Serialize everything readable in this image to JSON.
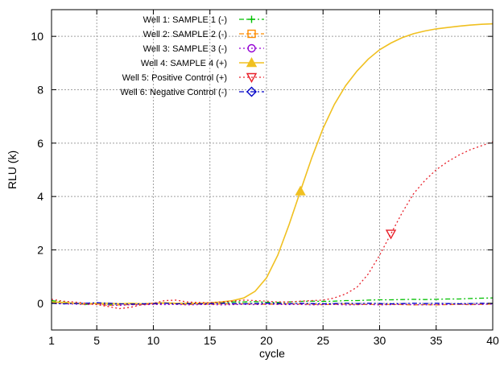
{
  "chart_data": {
    "type": "line",
    "title": "",
    "xlabel": "cycle",
    "ylabel": "RLU (k)",
    "xlim": [
      1,
      40
    ],
    "ylim": [
      -1,
      11
    ],
    "x_ticks": [
      1,
      5,
      10,
      15,
      20,
      25,
      30,
      35,
      40
    ],
    "y_ticks": [
      0,
      2,
      4,
      6,
      8,
      10
    ],
    "grid": true,
    "legend_position": "top-left",
    "x": [
      1,
      2,
      3,
      4,
      5,
      6,
      7,
      8,
      9,
      10,
      11,
      12,
      13,
      14,
      15,
      16,
      17,
      18,
      19,
      20,
      21,
      22,
      23,
      24,
      25,
      26,
      27,
      28,
      29,
      30,
      31,
      32,
      33,
      34,
      35,
      36,
      37,
      38,
      39,
      40
    ],
    "series": [
      {
        "name": "Well 1: SAMPLE 1 (-)",
        "color": "#00c000",
        "dash": "dot-dash",
        "marker": "plus",
        "values": [
          0.1,
          0.05,
          0.0,
          -0.05,
          0.0,
          -0.05,
          -0.02,
          0.0,
          -0.03,
          0.0,
          0.02,
          0.0,
          -0.02,
          0.0,
          0.0,
          0.02,
          0.05,
          0.05,
          0.06,
          0.04,
          0.03,
          0.05,
          0.07,
          0.08,
          0.07,
          0.08,
          0.1,
          0.1,
          0.12,
          0.13,
          0.13,
          0.14,
          0.15,
          0.14,
          0.15,
          0.16,
          0.16,
          0.18,
          0.19,
          0.2
        ]
      },
      {
        "name": "Well 2: SAMPLE 2 (-)",
        "color": "#ff8c00",
        "dash": "dashed",
        "marker": "square",
        "values": [
          0.05,
          0.03,
          0.0,
          -0.04,
          -0.02,
          -0.08,
          -0.06,
          -0.05,
          -0.04,
          -0.03,
          0.0,
          -0.02,
          -0.05,
          -0.03,
          -0.04,
          -0.02,
          -0.03,
          -0.02,
          -0.03,
          -0.04,
          -0.03,
          -0.02,
          -0.03,
          -0.04,
          -0.05,
          -0.04,
          -0.03,
          -0.05,
          -0.04,
          -0.05,
          -0.04,
          -0.05,
          -0.06,
          -0.05,
          -0.06,
          -0.05,
          -0.04,
          -0.05,
          -0.04,
          -0.03
        ]
      },
      {
        "name": "Well 3: SAMPLE 3 (-)",
        "color": "#9400d3",
        "dash": "dotted",
        "marker": "circle",
        "values": [
          0.0,
          -0.02,
          -0.03,
          -0.05,
          -0.03,
          -0.06,
          -0.08,
          -0.05,
          -0.06,
          -0.04,
          -0.05,
          -0.04,
          -0.06,
          -0.05,
          -0.04,
          -0.06,
          -0.05,
          -0.04,
          -0.05,
          -0.03,
          -0.04,
          -0.05,
          -0.04,
          -0.06,
          -0.05,
          -0.04,
          -0.06,
          -0.05,
          -0.04,
          -0.06,
          -0.05,
          -0.04,
          -0.05,
          -0.06,
          -0.05,
          -0.04,
          -0.03,
          -0.05,
          -0.04,
          -0.03
        ]
      },
      {
        "name": "Well 4: SAMPLE 4 (+)",
        "color": "#f0c020",
        "dash": "solid",
        "marker": "triangle",
        "marker_x": 23,
        "values": [
          0.05,
          0.03,
          0.0,
          -0.02,
          0.0,
          0.0,
          -0.02,
          0.0,
          -0.02,
          0.0,
          0.02,
          0.0,
          0.0,
          0.0,
          0.02,
          0.05,
          0.1,
          0.2,
          0.45,
          0.95,
          1.8,
          2.95,
          4.2,
          5.45,
          6.55,
          7.45,
          8.15,
          8.7,
          9.15,
          9.5,
          9.75,
          9.95,
          10.1,
          10.2,
          10.28,
          10.33,
          10.38,
          10.42,
          10.45,
          10.47
        ]
      },
      {
        "name": "Well 5: Positive Control (+)",
        "color": "#e8202a",
        "dash": "dotted",
        "marker": "triangle-down",
        "marker_x": 31,
        "values": [
          0.15,
          0.08,
          0.05,
          0.0,
          -0.05,
          -0.12,
          -0.2,
          -0.15,
          -0.05,
          0.0,
          0.1,
          0.12,
          0.05,
          0.03,
          0.02,
          0.05,
          0.08,
          0.12,
          0.1,
          0.08,
          0.05,
          0.05,
          0.08,
          0.1,
          0.12,
          0.2,
          0.35,
          0.6,
          1.1,
          1.8,
          2.6,
          3.4,
          4.1,
          4.6,
          5.0,
          5.3,
          5.55,
          5.75,
          5.9,
          6.05
        ]
      },
      {
        "name": "Well 6: Negative Control (-)",
        "color": "#0000c8",
        "dash": "dot-dash",
        "marker": "diamond",
        "values": [
          0.0,
          -0.02,
          -0.01,
          0.0,
          0.02,
          0.0,
          -0.02,
          -0.03,
          -0.02,
          -0.01,
          0.0,
          -0.02,
          -0.01,
          -0.02,
          -0.01,
          0.0,
          -0.01,
          -0.02,
          -0.01,
          0.0,
          -0.01,
          -0.02,
          0.0,
          -0.01,
          -0.02,
          -0.01,
          0.0,
          -0.01,
          0.0,
          -0.01,
          -0.02,
          -0.01,
          0.0,
          -0.01,
          0.0,
          -0.01,
          -0.02,
          -0.01,
          0.0,
          -0.01
        ]
      }
    ]
  }
}
